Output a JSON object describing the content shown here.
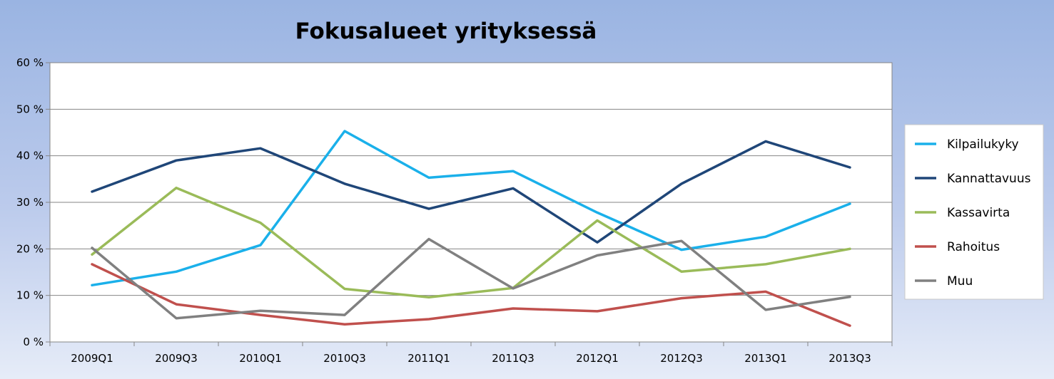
{
  "chart_data": {
    "type": "line",
    "title": "Fokusalueet yrityksessä",
    "xlabel": "",
    "ylabel": "",
    "ylim": [
      0,
      60
    ],
    "y_ticks": [
      0,
      10,
      20,
      30,
      40,
      50,
      60
    ],
    "y_tick_labels": [
      "0 %",
      "10 %",
      "20 %",
      "30 %",
      "40 %",
      "50 %",
      "60 %"
    ],
    "categories": [
      "2009Q1",
      "2009Q3",
      "2010Q1",
      "2010Q3",
      "2011Q1",
      "2011Q3",
      "2012Q1",
      "2012Q3",
      "2013Q1",
      "2013Q3"
    ],
    "grid": true,
    "legend_position": "right",
    "series": [
      {
        "name": "Kilpailukyky",
        "color": "#1ab0ea",
        "values": [
          12.2,
          15.1,
          20.8,
          45.3,
          35.3,
          36.7,
          27.8,
          19.8,
          22.6,
          29.7
        ]
      },
      {
        "name": "Kannattavuus",
        "color": "#1f4678",
        "values": [
          32.3,
          39.0,
          41.6,
          34.0,
          28.6,
          33.0,
          21.4,
          34.0,
          43.1,
          37.5
        ]
      },
      {
        "name": "Kassavirta",
        "color": "#9abb59",
        "values": [
          18.8,
          33.1,
          25.6,
          11.4,
          9.6,
          11.6,
          26.1,
          15.1,
          16.7,
          20.0
        ]
      },
      {
        "name": "Rahoitus",
        "color": "#c0504d",
        "values": [
          16.7,
          8.1,
          5.8,
          3.8,
          4.9,
          7.2,
          6.6,
          9.4,
          10.8,
          3.5
        ]
      },
      {
        "name": "Muu",
        "color": "#808080",
        "values": [
          20.2,
          5.1,
          6.7,
          5.8,
          22.1,
          11.5,
          18.6,
          21.7,
          6.9,
          9.7
        ]
      }
    ]
  }
}
